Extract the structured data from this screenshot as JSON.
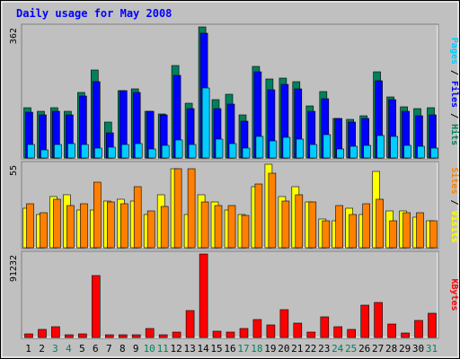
{
  "chart_data": {
    "type": "bar",
    "title": "Daily usage for May 2008",
    "days": [
      "1",
      "2",
      "3",
      "4",
      "5",
      "6",
      "7",
      "8",
      "9",
      "10",
      "11",
      "12",
      "13",
      "14",
      "15",
      "16",
      "17",
      "18",
      "19",
      "20",
      "21",
      "22",
      "23",
      "24",
      "25",
      "26",
      "27",
      "28",
      "29",
      "30",
      "31"
    ],
    "weekend_days": [
      "3",
      "4",
      "10",
      "11",
      "17",
      "18",
      "24",
      "25",
      "31"
    ],
    "panels": [
      {
        "id": "top",
        "max_label": "362",
        "ylim": [
          0,
          362
        ],
        "right_labels": [
          {
            "text": "Pages",
            "color": "#00ccff"
          },
          {
            "text": " / ",
            "color": "#000000"
          },
          {
            "text": "Files",
            "color": "#0000ff"
          },
          {
            "text": " / ",
            "color": "#000000"
          },
          {
            "text": "Hits",
            "color": "#00805c"
          }
        ],
        "series": [
          {
            "name": "Hits",
            "color": "#00805c",
            "values": [
              138,
              130,
              138,
              130,
              180,
              244,
              100,
              186,
              190,
              128,
              122,
              256,
              152,
              362,
              160,
              176,
              118,
              254,
              218,
              220,
              210,
              145,
              184,
              110,
              106,
              116,
              238,
              168,
              142,
              136,
              140
            ]
          },
          {
            "name": "Files",
            "color": "#0000ff",
            "values": [
              126,
              120,
              128,
              120,
              170,
              210,
              70,
              186,
              180,
              128,
              120,
              228,
              136,
              344,
              136,
              150,
              102,
              238,
              188,
              204,
              192,
              130,
              164,
              108,
              98,
              108,
              214,
              162,
              128,
              116,
              120
            ]
          },
          {
            "name": "Pages",
            "color": "#00ccff",
            "values": [
              36,
              22,
              38,
              40,
              36,
              28,
              30,
              38,
              40,
              24,
              34,
              50,
              38,
              194,
              52,
              40,
              28,
              60,
              48,
              58,
              52,
              38,
              64,
              24,
              32,
              34,
              62,
              60,
              34,
              32,
              28
            ]
          }
        ]
      },
      {
        "id": "mid",
        "max_label": "55",
        "ylim": [
          0,
          55
        ],
        "right_labels": [
          {
            "text": "Sites",
            "color": "#ff8000"
          },
          {
            "text": " / ",
            "color": "#000000"
          },
          {
            "text": "Visits",
            "color": "#ffff00"
          }
        ],
        "series": [
          {
            "name": "Visits",
            "color": "#ffff00",
            "values": [
              26,
              22,
              34,
              35,
              25,
              25,
              31,
              32,
              31,
              22,
              35,
              52,
              22,
              35,
              30,
              25,
              22,
              40,
              55,
              34,
              40,
              30,
              19,
              18,
              26,
              22,
              50,
              24,
              24,
              20,
              18
            ]
          },
          {
            "name": "Sites",
            "color": "#ff8000",
            "values": [
              29,
              23,
              32,
              28,
              29,
              43,
              30,
              29,
              40,
              24,
              27,
              52,
              52,
              30,
              28,
              28,
              21,
              42,
              49,
              31,
              35,
              30,
              18,
              28,
              22,
              29,
              32,
              18,
              23,
              23,
              18
            ]
          }
        ]
      },
      {
        "id": "bot",
        "max_label": "91232",
        "ylim": [
          0,
          91232
        ],
        "right_labels": [
          {
            "text": "KBytes",
            "color": "#ff0000"
          }
        ],
        "series": [
          {
            "name": "KBytes",
            "color": "#ff0000",
            "values": [
              4000,
              9000,
              12000,
              3000,
              4000,
              68000,
              3000,
              3000,
              3000,
              10000,
              3000,
              6000,
              29000,
              91232,
              7000,
              6000,
              10000,
              20000,
              14000,
              30000,
              16000,
              6000,
              23000,
              12000,
              9000,
              35000,
              38000,
              15000,
              5000,
              19000,
              26000
            ]
          }
        ]
      }
    ],
    "colors": {
      "frame": "#c0c0c0",
      "plot_bg": "#c0c0c0",
      "title": "#0000ff",
      "weekday_label": "#000000",
      "weekend_label": "#00805c"
    }
  }
}
